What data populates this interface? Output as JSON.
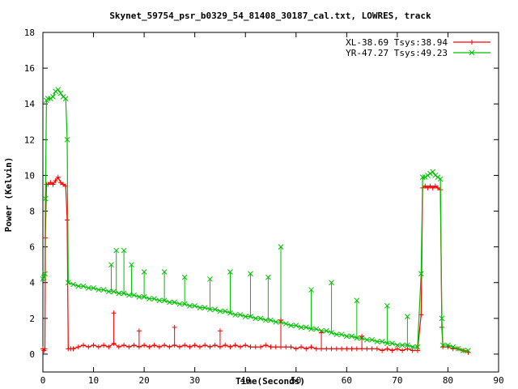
{
  "chart_data": {
    "type": "line",
    "title": "Skynet_59754_psr_b0329_54_81408_30187_cal.txt, LOWRES, track",
    "xlabel": "Time(Seconds)",
    "ylabel": "Power (Kelvin)",
    "xlim": [
      0,
      90
    ],
    "ylim": [
      -1,
      18
    ],
    "xticks": [
      0,
      10,
      20,
      30,
      40,
      50,
      60,
      70,
      80,
      90
    ],
    "yticks": [
      0,
      2,
      4,
      6,
      8,
      10,
      12,
      14,
      16,
      18
    ],
    "grid": false,
    "legend_position": "top-right",
    "series": [
      {
        "name": "XL-38.69 Tsys:38.94",
        "color": "#ff0000",
        "marker": "plus",
        "points": [
          [
            0.0,
            0.3
          ],
          [
            0.2,
            0.2
          ],
          [
            0.4,
            0.3
          ],
          [
            0.5,
            6.5
          ],
          [
            0.7,
            9.5
          ],
          [
            1,
            9.5
          ],
          [
            1.5,
            9.6
          ],
          [
            2,
            9.5
          ],
          [
            2.5,
            9.7
          ],
          [
            3,
            9.9
          ],
          [
            3.5,
            9.6
          ],
          [
            4,
            9.5
          ],
          [
            4.5,
            9.4
          ],
          [
            4.8,
            7.5
          ],
          [
            5.0,
            0.3
          ],
          [
            5.5,
            0.3
          ],
          [
            6,
            0.3
          ],
          [
            7,
            0.4
          ],
          [
            8,
            0.5
          ],
          [
            9,
            0.4
          ],
          [
            10,
            0.5
          ],
          [
            11,
            0.4
          ],
          [
            12,
            0.5
          ],
          [
            13,
            0.4
          ],
          [
            14,
            0.6
          ],
          [
            15,
            0.4
          ],
          [
            16,
            0.5
          ],
          [
            17,
            0.4
          ],
          [
            18,
            0.5
          ],
          [
            19,
            0.4
          ],
          [
            20,
            0.5
          ],
          [
            21,
            0.4
          ],
          [
            22,
            0.5
          ],
          [
            23,
            0.4
          ],
          [
            24,
            0.5
          ],
          [
            25,
            0.4
          ],
          [
            26,
            0.5
          ],
          [
            27,
            0.4
          ],
          [
            28,
            0.5
          ],
          [
            29,
            0.4
          ],
          [
            30,
            0.5
          ],
          [
            31,
            0.4
          ],
          [
            32,
            0.5
          ],
          [
            33,
            0.4
          ],
          [
            34,
            0.5
          ],
          [
            35,
            0.4
          ],
          [
            36,
            0.5
          ],
          [
            37,
            0.4
          ],
          [
            38,
            0.5
          ],
          [
            39,
            0.4
          ],
          [
            40,
            0.5
          ],
          [
            41,
            0.4
          ],
          [
            42,
            0.4
          ],
          [
            43,
            0.4
          ],
          [
            44,
            0.5
          ],
          [
            45,
            0.4
          ],
          [
            46,
            0.4
          ],
          [
            47,
            0.4
          ],
          [
            48,
            0.4
          ],
          [
            49,
            0.4
          ],
          [
            50,
            0.3
          ],
          [
            51,
            0.4
          ],
          [
            52,
            0.3
          ],
          [
            53,
            0.4
          ],
          [
            54,
            0.3
          ],
          [
            55,
            0.3
          ],
          [
            56,
            0.3
          ],
          [
            57,
            0.3
          ],
          [
            58,
            0.3
          ],
          [
            59,
            0.3
          ],
          [
            60,
            0.3
          ],
          [
            61,
            0.3
          ],
          [
            62,
            0.3
          ],
          [
            63,
            0.3
          ],
          [
            64,
            0.3
          ],
          [
            65,
            0.3
          ],
          [
            66,
            0.3
          ],
          [
            67,
            0.2
          ],
          [
            68,
            0.3
          ],
          [
            69,
            0.2
          ],
          [
            70,
            0.3
          ],
          [
            71,
            0.2
          ],
          [
            72,
            0.3
          ],
          [
            73,
            0.2
          ],
          [
            74,
            0.2
          ],
          [
            74.7,
            2.2
          ],
          [
            75,
            9.3
          ],
          [
            75.5,
            9.4
          ],
          [
            76,
            9.3
          ],
          [
            76.5,
            9.4
          ],
          [
            77,
            9.3
          ],
          [
            77.5,
            9.4
          ],
          [
            78,
            9.3
          ],
          [
            78.5,
            9.2
          ],
          [
            78.8,
            1.5
          ],
          [
            79,
            0.4
          ],
          [
            80,
            0.4
          ],
          [
            81,
            0.3
          ],
          [
            82,
            0.3
          ],
          [
            83,
            0.2
          ],
          [
            84,
            0.1
          ]
        ]
      },
      {
        "name": "YR-47.27 Tsys:49.23",
        "color": "#00c000",
        "marker": "cross",
        "points": [
          [
            0.0,
            4.2
          ],
          [
            0.2,
            4.3
          ],
          [
            0.4,
            4.5
          ],
          [
            0.5,
            8.7
          ],
          [
            0.7,
            14.2
          ],
          [
            1,
            14.3
          ],
          [
            1.5,
            14.3
          ],
          [
            2,
            14.4
          ],
          [
            2.5,
            14.7
          ],
          [
            3,
            14.8
          ],
          [
            3.5,
            14.6
          ],
          [
            4,
            14.4
          ],
          [
            4.5,
            14.3
          ],
          [
            4.8,
            12.0
          ],
          [
            5.0,
            4.0
          ],
          [
            6,
            3.9
          ],
          [
            7,
            3.8
          ],
          [
            8,
            3.8
          ],
          [
            9,
            3.7
          ],
          [
            10,
            3.7
          ],
          [
            11,
            3.6
          ],
          [
            12,
            3.6
          ],
          [
            13,
            3.5
          ],
          [
            14,
            3.5
          ],
          [
            15,
            3.4
          ],
          [
            16,
            3.4
          ],
          [
            17,
            3.3
          ],
          [
            18,
            3.3
          ],
          [
            19,
            3.2
          ],
          [
            20,
            3.2
          ],
          [
            21,
            3.1
          ],
          [
            22,
            3.1
          ],
          [
            23,
            3.0
          ],
          [
            24,
            3.0
          ],
          [
            25,
            2.9
          ],
          [
            26,
            2.9
          ],
          [
            27,
            2.8
          ],
          [
            28,
            2.8
          ],
          [
            29,
            2.7
          ],
          [
            30,
            2.7
          ],
          [
            31,
            2.6
          ],
          [
            32,
            2.6
          ],
          [
            33,
            2.5
          ],
          [
            34,
            2.5
          ],
          [
            35,
            2.4
          ],
          [
            36,
            2.4
          ],
          [
            37,
            2.3
          ],
          [
            38,
            2.2
          ],
          [
            39,
            2.2
          ],
          [
            40,
            2.1
          ],
          [
            41,
            2.1
          ],
          [
            42,
            2.0
          ],
          [
            43,
            2.0
          ],
          [
            44,
            1.9
          ],
          [
            45,
            1.9
          ],
          [
            46,
            1.8
          ],
          [
            47,
            1.8
          ],
          [
            48,
            1.7
          ],
          [
            49,
            1.6
          ],
          [
            50,
            1.6
          ],
          [
            51,
            1.5
          ],
          [
            52,
            1.5
          ],
          [
            53,
            1.4
          ],
          [
            54,
            1.4
          ],
          [
            55,
            1.3
          ],
          [
            56,
            1.3
          ],
          [
            57,
            1.2
          ],
          [
            58,
            1.1
          ],
          [
            59,
            1.1
          ],
          [
            60,
            1.0
          ],
          [
            61,
            1.0
          ],
          [
            62,
            0.9
          ],
          [
            63,
            0.9
          ],
          [
            64,
            0.8
          ],
          [
            65,
            0.8
          ],
          [
            66,
            0.7
          ],
          [
            67,
            0.7
          ],
          [
            68,
            0.6
          ],
          [
            69,
            0.6
          ],
          [
            70,
            0.5
          ],
          [
            71,
            0.5
          ],
          [
            72,
            0.5
          ],
          [
            73,
            0.4
          ],
          [
            74,
            0.4
          ],
          [
            74.7,
            4.5
          ],
          [
            75,
            9.9
          ],
          [
            75.5,
            9.9
          ],
          [
            76,
            10.0
          ],
          [
            76.5,
            10.1
          ],
          [
            77,
            10.2
          ],
          [
            77.5,
            10.0
          ],
          [
            78,
            9.9
          ],
          [
            78.5,
            9.8
          ],
          [
            78.8,
            2.0
          ],
          [
            79,
            0.5
          ],
          [
            80,
            0.5
          ],
          [
            81,
            0.4
          ],
          [
            82,
            0.3
          ],
          [
            83,
            0.2
          ],
          [
            84,
            0.2
          ]
        ]
      }
    ],
    "spikes": [
      {
        "series": 1,
        "x": 13.5,
        "y": 5.0
      },
      {
        "series": 1,
        "x": 14.5,
        "y": 5.8
      },
      {
        "series": 1,
        "x": 16,
        "y": 5.8
      },
      {
        "series": 1,
        "x": 17.5,
        "y": 5.0
      },
      {
        "series": 1,
        "x": 20,
        "y": 4.6
      },
      {
        "series": 1,
        "x": 24,
        "y": 4.6
      },
      {
        "series": 1,
        "x": 28,
        "y": 4.3
      },
      {
        "series": 1,
        "x": 33,
        "y": 4.2
      },
      {
        "series": 1,
        "x": 37,
        "y": 4.6
      },
      {
        "series": 1,
        "x": 41,
        "y": 4.5
      },
      {
        "series": 1,
        "x": 44.5,
        "y": 4.3
      },
      {
        "series": 1,
        "x": 47,
        "y": 6.0
      },
      {
        "series": 1,
        "x": 53,
        "y": 3.6
      },
      {
        "series": 1,
        "x": 57,
        "y": 4.0
      },
      {
        "series": 1,
        "x": 62,
        "y": 3.0
      },
      {
        "series": 1,
        "x": 68,
        "y": 2.7
      },
      {
        "series": 1,
        "x": 72,
        "y": 2.1
      },
      {
        "series": 0,
        "x": 14,
        "y": 2.3
      },
      {
        "series": 0,
        "x": 19,
        "y": 1.3
      },
      {
        "series": 0,
        "x": 26,
        "y": 1.5
      },
      {
        "series": 0,
        "x": 35,
        "y": 1.3
      },
      {
        "series": 0,
        "x": 47,
        "y": 1.9
      },
      {
        "series": 0,
        "x": 55,
        "y": 1.2
      },
      {
        "series": 0,
        "x": 63,
        "y": 1.0
      }
    ]
  }
}
